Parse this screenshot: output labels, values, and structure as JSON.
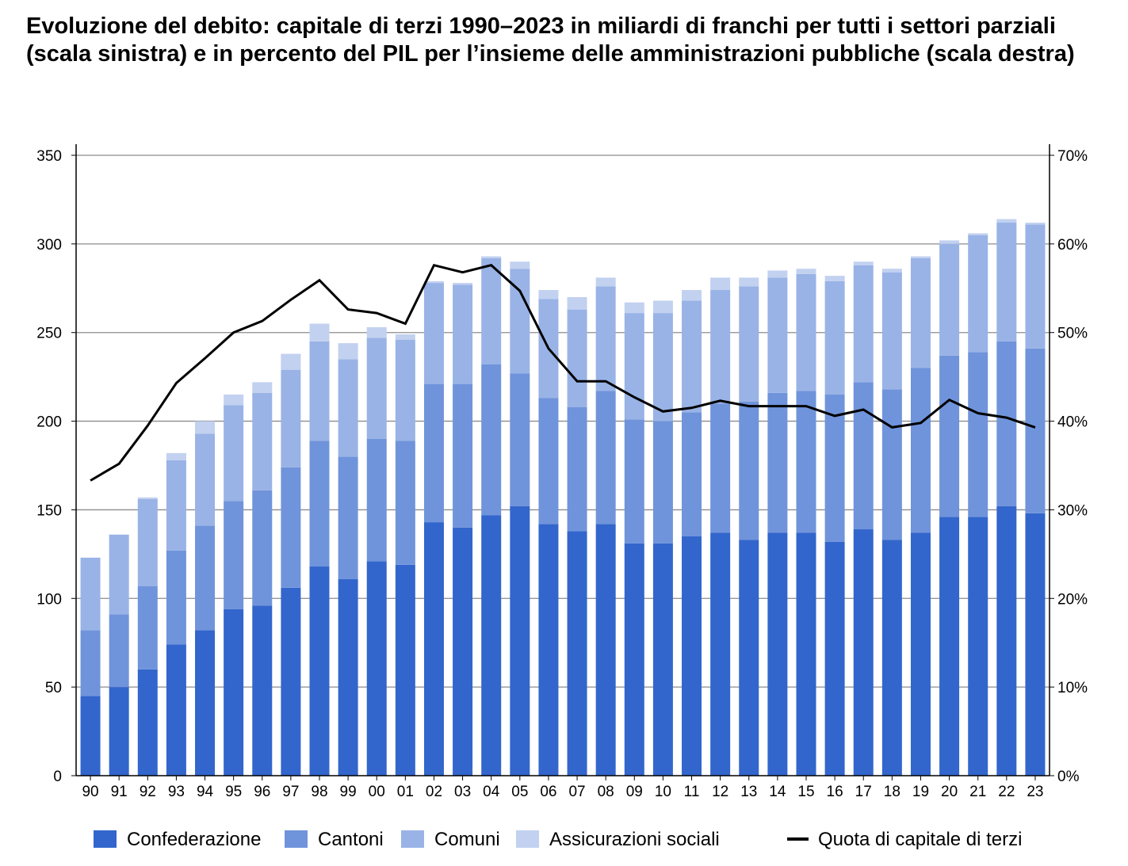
{
  "title": "Evoluzione del debito: capitale di terzi 1990–2023 in miliardi di franchi per tutti i settori parziali (scala sinistra) e in percento del PIL per l’insieme delle amministrazioni pubbliche (scala destra)",
  "chart_data": {
    "type": "bar",
    "stacked": true,
    "categories": [
      "90",
      "91",
      "92",
      "93",
      "94",
      "95",
      "96",
      "97",
      "98",
      "99",
      "00",
      "01",
      "02",
      "03",
      "04",
      "05",
      "06",
      "07",
      "08",
      "09",
      "10",
      "11",
      "12",
      "13",
      "14",
      "15",
      "16",
      "17",
      "18",
      "19",
      "20",
      "21",
      "22",
      "23"
    ],
    "series": [
      {
        "name": "Confederazione",
        "color": "#3366cc",
        "axis": "left",
        "values": [
          45,
          50,
          60,
          74,
          82,
          94,
          96,
          106,
          118,
          111,
          121,
          119,
          143,
          140,
          147,
          152,
          142,
          138,
          142,
          131,
          131,
          135,
          137,
          133,
          137,
          137,
          132,
          139,
          133,
          137,
          146,
          146,
          152,
          148
        ]
      },
      {
        "name": "Cantoni",
        "color": "#7094db",
        "axis": "left",
        "values": [
          37,
          41,
          47,
          53,
          59,
          61,
          65,
          68,
          71,
          69,
          69,
          70,
          78,
          81,
          85,
          75,
          71,
          70,
          75,
          70,
          69,
          70,
          73,
          78,
          79,
          80,
          83,
          83,
          85,
          93,
          91,
          93,
          93,
          93
        ]
      },
      {
        "name": "Comuni",
        "color": "#99b3e6",
        "axis": "left",
        "values": [
          41,
          45,
          49,
          51,
          52,
          54,
          55,
          55,
          56,
          55,
          57,
          57,
          57,
          56,
          60,
          59,
          56,
          55,
          59,
          60,
          61,
          63,
          64,
          65,
          65,
          66,
          64,
          66,
          66,
          62,
          63,
          66,
          67,
          70
        ]
      },
      {
        "name": "Assicurazioni sociali",
        "color": "#c2d1f0",
        "axis": "left",
        "values": [
          0,
          0,
          1,
          4,
          7,
          6,
          6,
          9,
          10,
          9,
          6,
          3,
          1,
          1,
          1,
          4,
          5,
          7,
          5,
          6,
          7,
          6,
          7,
          5,
          4,
          3,
          3,
          2,
          2,
          1,
          2,
          1,
          2,
          1
        ]
      }
    ],
    "line": {
      "name": "Quota di capitale di terzi",
      "color": "#000000",
      "axis": "right",
      "values": [
        33.3,
        35.2,
        39.5,
        44.3,
        47.1,
        50.0,
        51.3,
        53.7,
        55.9,
        52.6,
        52.2,
        51.0,
        57.6,
        56.8,
        57.6,
        54.7,
        48.2,
        44.5,
        44.5,
        42.7,
        41.1,
        41.5,
        42.3,
        41.7,
        41.7,
        41.7,
        40.6,
        41.3,
        39.3,
        39.8,
        42.4,
        40.9,
        40.4,
        39.3
      ]
    },
    "y_left": {
      "min": 0,
      "max": 350,
      "ticks": [
        0,
        50,
        100,
        150,
        200,
        250,
        300,
        350
      ]
    },
    "y_right": {
      "min": 0,
      "max": 70,
      "ticks": [
        "0%",
        "10%",
        "20%",
        "30%",
        "40%",
        "50%",
        "60%",
        "70%"
      ]
    },
    "grid": true,
    "legend_position": "bottom"
  }
}
